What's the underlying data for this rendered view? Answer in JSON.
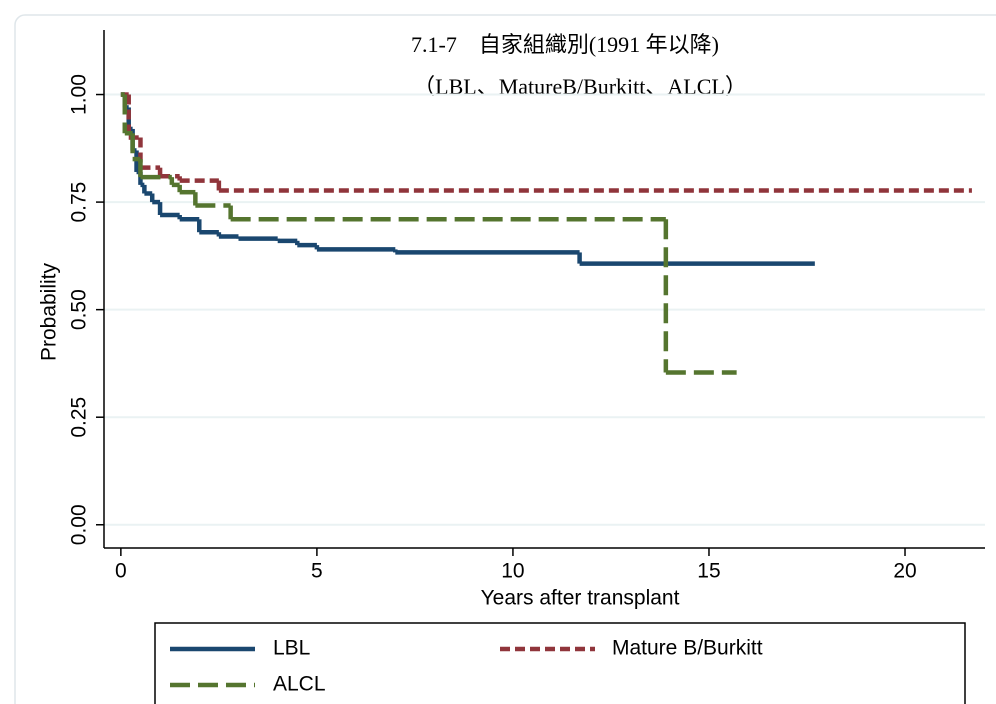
{
  "chart_data": {
    "type": "line",
    "step": true,
    "title": "7.1-7　自家組織別(1991 年以降)",
    "subtitle": "（LBL、MatureB/Burkitt、ALCL）",
    "x_label": "Years after transplant",
    "y_label": "Probability",
    "xlim": [
      -0.43,
      22.04
    ],
    "ylim": [
      -0.054,
      1.15
    ],
    "xticks": [
      0,
      5,
      10,
      15,
      20
    ],
    "yticks": [
      {
        "value": 0,
        "label": "0.00"
      },
      {
        "value": 0.25,
        "label": "0.25"
      },
      {
        "value": 0.5,
        "label": "0.50"
      },
      {
        "value": 0.75,
        "label": "0.75"
      },
      {
        "value": 1,
        "label": "1.00"
      }
    ],
    "grid": true,
    "legend": "bottom",
    "series": [
      {
        "name": "LBL",
        "color": "#1a476f",
        "line_style": "solid",
        "x": [
          0,
          0.1,
          0.2,
          0.3,
          0.4,
          0.5,
          0.6,
          0.8,
          1,
          1.5,
          2,
          2.5,
          3,
          4,
          4.5,
          5,
          7,
          11.7,
          17.7
        ],
        "values": [
          1,
          0.97,
          0.92,
          0.87,
          0.82,
          0.79,
          0.77,
          0.75,
          0.72,
          0.71,
          0.68,
          0.67,
          0.665,
          0.66,
          0.65,
          0.64,
          0.633,
          0.607,
          0.607
        ]
      },
      {
        "name": "Mature B/Burkitt",
        "color": "#90353b",
        "line_style": "short-dash",
        "x": [
          0,
          0.2,
          0.5,
          1,
          1.5,
          2.5,
          21.7
        ],
        "values": [
          1,
          0.9,
          0.83,
          0.81,
          0.8,
          0.777,
          0.777
        ]
      },
      {
        "name": "ALCL",
        "color": "#55752f",
        "line_style": "long-dash",
        "x": [
          0,
          0.1,
          0.3,
          0.5,
          1.3,
          1.5,
          1.9,
          2.8,
          13.9,
          15.7
        ],
        "values": [
          1,
          0.91,
          0.85,
          0.808,
          0.79,
          0.773,
          0.742,
          0.71,
          0.354,
          0.354
        ]
      }
    ]
  }
}
